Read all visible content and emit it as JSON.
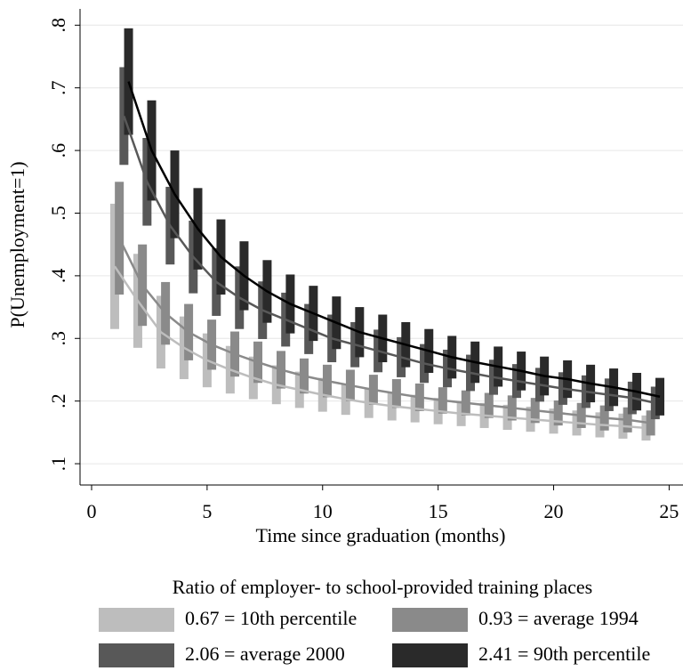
{
  "chart_data": {
    "type": "line_errorbar",
    "y_label": "P(Unemployment=1)",
    "x_label": "Time since graduation (months)",
    "legend_title": "Ratio of employer- to school-provided training places",
    "xlim": [
      -0.5,
      25.6
    ],
    "xticks": [
      0,
      5,
      10,
      15,
      20,
      25
    ],
    "ylim": [
      0.066,
      0.826
    ],
    "yticks": [
      {
        "value": 0.1,
        "label": ".1"
      },
      {
        "value": 0.2,
        "label": ".2"
      },
      {
        "value": 0.3,
        "label": ".3"
      },
      {
        "value": 0.4,
        "label": ".4"
      },
      {
        "value": 0.5,
        "label": ".5"
      },
      {
        "value": 0.6,
        "label": ".6"
      },
      {
        "value": 0.7,
        "label": ".7"
      },
      {
        "value": 0.8,
        "label": ".8"
      }
    ],
    "grid": true,
    "series": [
      {
        "name": "0.67 = 10th percentile",
        "color": "#bdbdbd",
        "x": [
          1,
          2,
          3,
          4,
          5,
          6,
          7,
          8,
          9,
          10,
          11,
          12,
          13,
          14,
          15,
          16,
          17,
          18,
          19,
          20,
          21,
          22,
          23,
          24
        ],
        "values": [
          0.415,
          0.36,
          0.31,
          0.285,
          0.265,
          0.25,
          0.237,
          0.226,
          0.218,
          0.21,
          0.203,
          0.197,
          0.192,
          0.188,
          0.184,
          0.18,
          0.177,
          0.174,
          0.171,
          0.168,
          0.165,
          0.162,
          0.16,
          0.157
        ],
        "errors": [
          0.1,
          0.075,
          0.058,
          0.05,
          0.043,
          0.038,
          0.034,
          0.031,
          0.029,
          0.027,
          0.025,
          0.024,
          0.023,
          0.022,
          0.021,
          0.02,
          0.02,
          0.02,
          0.02,
          0.02,
          0.02,
          0.02,
          0.02,
          0.02
        ]
      },
      {
        "name": "0.93 = average 1994",
        "color": "#8a8a8a",
        "x": [
          1.2,
          2.2,
          3.2,
          4.2,
          5.2,
          6.2,
          7.2,
          8.2,
          9.2,
          10.2,
          11.2,
          12.2,
          13.2,
          14.2,
          15.2,
          16.2,
          17.2,
          18.2,
          19.2,
          20.2,
          21.2,
          22.2,
          23.2,
          24.2
        ],
        "values": [
          0.46,
          0.385,
          0.34,
          0.31,
          0.29,
          0.275,
          0.262,
          0.25,
          0.24,
          0.232,
          0.225,
          0.218,
          0.212,
          0.206,
          0.201,
          0.197,
          0.193,
          0.189,
          0.185,
          0.181,
          0.177,
          0.173,
          0.17,
          0.165
        ],
        "errors": [
          0.09,
          0.065,
          0.05,
          0.045,
          0.04,
          0.036,
          0.033,
          0.03,
          0.028,
          0.026,
          0.025,
          0.024,
          0.023,
          0.022,
          0.021,
          0.02,
          0.02,
          0.02,
          0.02,
          0.02,
          0.02,
          0.02,
          0.02,
          0.02
        ]
      },
      {
        "name": "2.06 = average 2000",
        "color": "#585858",
        "x": [
          1.4,
          2.4,
          3.4,
          4.4,
          5.4,
          6.4,
          7.4,
          8.4,
          9.4,
          10.4,
          11.4,
          12.4,
          13.4,
          14.4,
          15.4,
          16.4,
          17.4,
          18.4,
          19.4,
          20.4,
          21.4,
          22.4,
          23.4,
          24.4
        ],
        "values": [
          0.655,
          0.55,
          0.48,
          0.43,
          0.39,
          0.365,
          0.345,
          0.33,
          0.315,
          0.3,
          0.29,
          0.28,
          0.27,
          0.26,
          0.252,
          0.245,
          0.238,
          0.232,
          0.226,
          0.22,
          0.215,
          0.21,
          0.205,
          0.197
        ],
        "errors": [
          0.078,
          0.07,
          0.062,
          0.058,
          0.054,
          0.05,
          0.046,
          0.043,
          0.04,
          0.038,
          0.036,
          0.034,
          0.032,
          0.031,
          0.03,
          0.029,
          0.028,
          0.027,
          0.027,
          0.026,
          0.026,
          0.026,
          0.026,
          0.026
        ]
      },
      {
        "name": "2.41 = 90th percentile",
        "color": "#2a2a2a",
        "x": [
          1.6,
          2.6,
          3.6,
          4.6,
          5.6,
          6.6,
          7.6,
          8.6,
          9.6,
          10.6,
          11.6,
          12.6,
          13.6,
          14.6,
          15.6,
          16.6,
          17.6,
          18.6,
          19.6,
          20.6,
          21.6,
          22.6,
          23.6,
          24.6
        ],
        "values": [
          0.71,
          0.6,
          0.53,
          0.475,
          0.43,
          0.4,
          0.375,
          0.355,
          0.34,
          0.325,
          0.31,
          0.3,
          0.29,
          0.28,
          0.27,
          0.262,
          0.255,
          0.248,
          0.24,
          0.235,
          0.228,
          0.222,
          0.215,
          0.207
        ],
        "errors": [
          0.085,
          0.08,
          0.07,
          0.065,
          0.06,
          0.055,
          0.05,
          0.047,
          0.044,
          0.042,
          0.04,
          0.038,
          0.036,
          0.035,
          0.034,
          0.033,
          0.032,
          0.031,
          0.031,
          0.03,
          0.03,
          0.03,
          0.03,
          0.03
        ]
      }
    ]
  }
}
